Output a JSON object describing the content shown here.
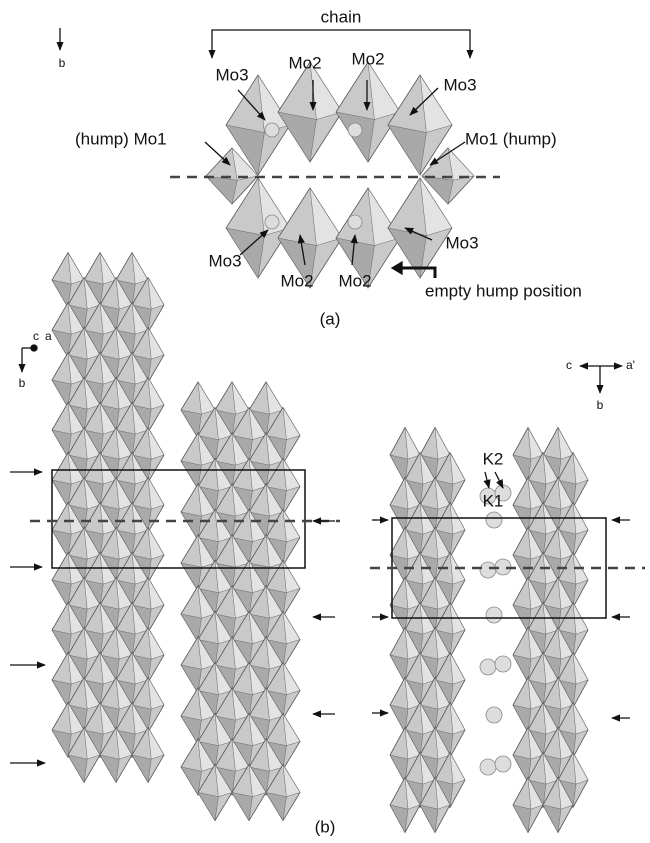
{
  "panel_a": {
    "axis_label": "b",
    "chain_label": "chain",
    "labels": [
      "Mo3",
      "Mo2",
      "Mo2",
      "Mo3",
      "(hump) Mo1",
      "Mo1 (hump)",
      "Mo3",
      "Mo2",
      "Mo2",
      "Mo3",
      "empty hump position"
    ],
    "caption": "(a)"
  },
  "panel_b": {
    "left_axes": [
      "c",
      "a",
      "b"
    ],
    "right_axes": [
      "c",
      "a'",
      "b"
    ],
    "atom_labels": [
      "K2",
      "K1"
    ],
    "caption": "(b)"
  }
}
